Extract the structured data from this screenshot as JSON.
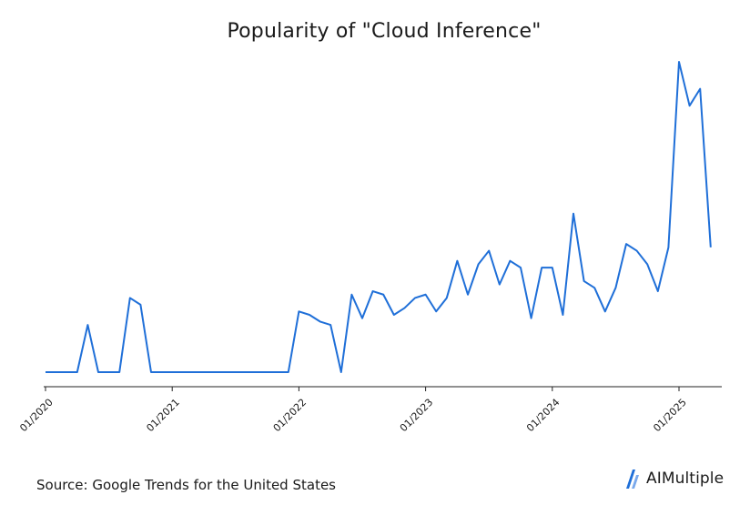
{
  "chart_data": {
    "type": "line",
    "title": "Popularity of \"Cloud Inference\"",
    "xlabel": "",
    "ylabel": "",
    "source": "Source: Google Trends for the United States",
    "x_ticks": [
      "01/2020",
      "01/2021",
      "01/2022",
      "01/2023",
      "01/2024",
      "01/2025"
    ],
    "x_start": "2020-01",
    "ylim": [
      0,
      100
    ],
    "line_color": "#1f6fd8",
    "grid": false,
    "legend": "none",
    "series": [
      {
        "values": [
          7,
          7,
          7,
          7,
          21,
          7,
          7,
          7,
          29,
          27,
          7,
          7,
          7,
          7,
          7,
          7,
          7,
          7,
          7,
          7,
          7,
          7,
          7,
          7,
          25,
          24,
          22,
          21,
          7,
          30,
          23,
          31,
          30,
          24,
          26,
          29,
          30,
          25,
          29,
          40,
          30,
          39,
          43,
          33,
          40,
          38,
          23,
          38,
          38,
          24,
          54,
          34,
          32,
          25,
          32,
          45,
          43,
          39,
          31,
          44,
          99,
          86,
          91,
          44
        ]
      }
    ]
  },
  "brand": {
    "name": "AIMultiple",
    "logo_icon": "aimultiple-logo-icon",
    "logo_color": "#1f6fd8"
  }
}
